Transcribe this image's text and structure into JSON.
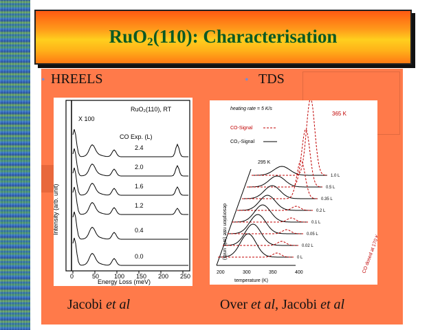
{
  "title": {
    "pre": "RuO",
    "sub": "2",
    "post": "(110): Characterisation"
  },
  "left": {
    "heading": "HREELS",
    "caption_name": "Jacobi",
    "caption_etal": "et al",
    "plot": {
      "sample_label": "RuO₂(110), RT",
      "magnification": "X 100",
      "legend_title": "CO Exp. (L)",
      "exposures": [
        "2.4",
        "2.0",
        "1.6",
        "1.2",
        "0.4",
        "0.0"
      ],
      "ylabel": "Intensity (arb. unit)",
      "xlabel": "Energy Loss (meV)",
      "xticks": [
        "0",
        "50",
        "100",
        "150",
        "200",
        "250"
      ]
    }
  },
  "right": {
    "heading": "TDS",
    "caption_name1": "Over",
    "caption_etal1": "et al",
    "caption_sep": ", Jacobi",
    "caption_etal2": "et al",
    "plot": {
      "legend_heating": "heating rate = 5 K/s",
      "legend_co": "CO-Signal",
      "legend_co2": "CO₂-Signal",
      "peak_label": "365 K",
      "peak2_label": "295 K",
      "ylabel": "desorption rate (arb. units)",
      "xlabel": "temperature (K)",
      "xticks": [
        "200",
        "300",
        "350",
        "400"
      ],
      "dose_labels": [
        "1.0 L",
        "0.5 L",
        "0.35 L",
        "0.2 L",
        "0.1 L",
        "0.05 L",
        "0.02 L",
        "0 L"
      ],
      "side_label": "CO dosed at 170 K"
    }
  }
}
